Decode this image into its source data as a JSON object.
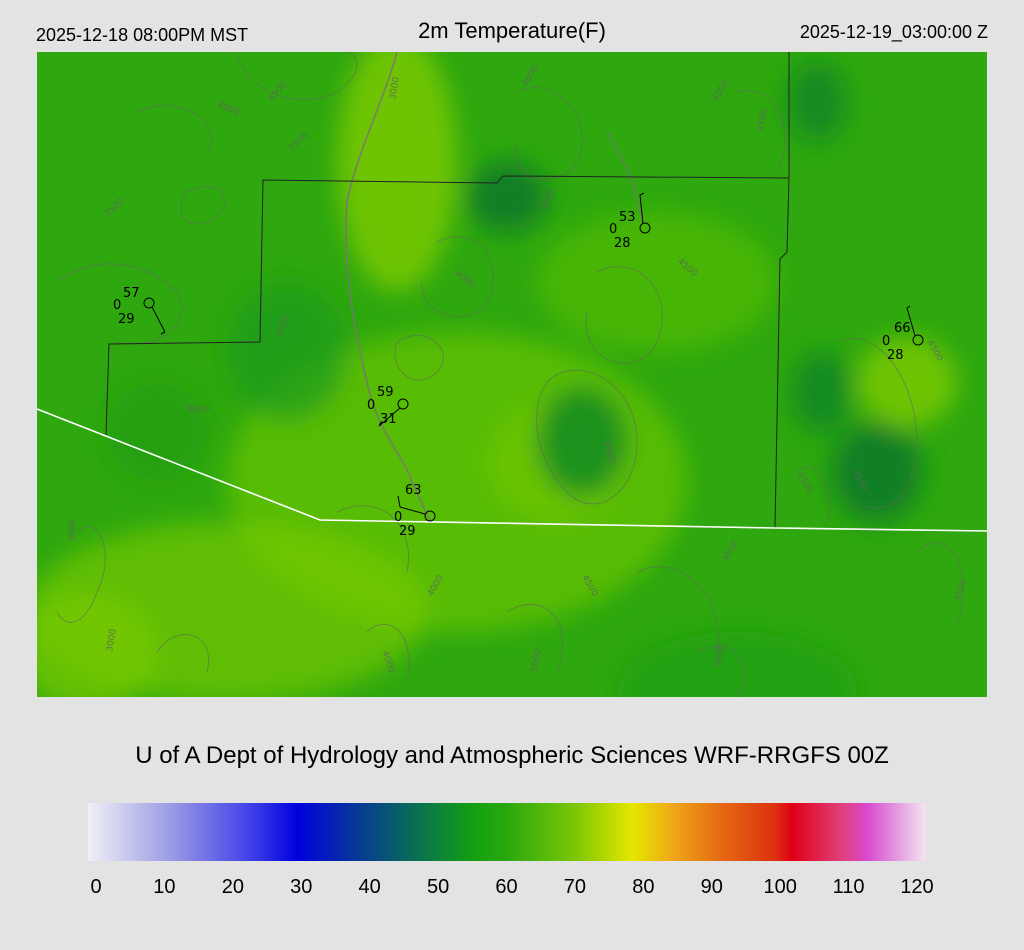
{
  "header": {
    "local_time": "2025-12-18 08:00PM MST",
    "title": "2m Temperature(F)",
    "valid_time": "2025-12-19_03:00:00 Z"
  },
  "credit": "U of A Dept of Hydrology and Atmospheric Sciences WRF-RRGFS 00Z",
  "colorbar": {
    "min": 0,
    "max": 120,
    "ticks": [
      "0",
      "10",
      "20",
      "30",
      "40",
      "50",
      "60",
      "70",
      "80",
      "90",
      "100",
      "110",
      "120"
    ]
  },
  "map": {
    "base_color": "#2ea80e",
    "stations": [
      {
        "temp": "57",
        "wind": "0",
        "dewpoint": "29"
      },
      {
        "temp": "53",
        "wind": "0",
        "dewpoint": "28"
      },
      {
        "temp": "66",
        "wind": "0",
        "dewpoint": "28"
      },
      {
        "temp": "59",
        "wind": "0",
        "dewpoint": "31"
      },
      {
        "temp": "63",
        "wind": "0",
        "dewpoint": "29"
      }
    ],
    "contour_labels": [
      "3000",
      "4000",
      "4500",
      "4000",
      "3500",
      "3500",
      "3500",
      "4500",
      "4500",
      "4500",
      "4500",
      "4500",
      "4500",
      "4500",
      "4500",
      "3000",
      "3000",
      "3000",
      "4500",
      "4000",
      "4000",
      "5000",
      "5000",
      "4500",
      "4500",
      "4500"
    ]
  }
}
